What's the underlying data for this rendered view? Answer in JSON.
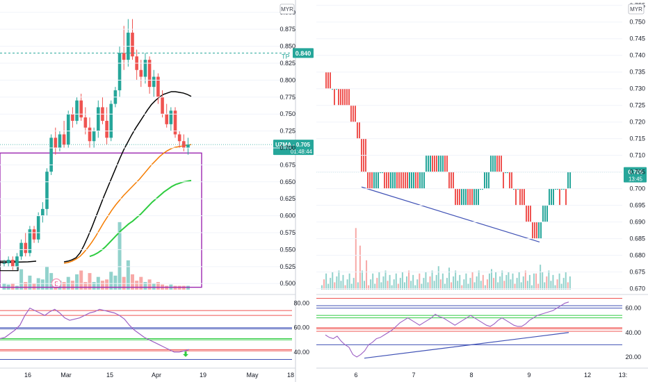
{
  "chart_data": [
    {
      "type": "candlestick",
      "panel": "left",
      "currency": "MYR",
      "symbol": "UZMA",
      "last_price": "0.705",
      "countdown": "01:48:44",
      "tp_label": "TP",
      "tp_price": "0.840",
      "event_badge": "E",
      "x_ticks": [
        "16",
        "Mar",
        "15",
        "Apr",
        "19",
        "May",
        "18"
      ],
      "y_ticks": [
        "0.500",
        "0.525",
        "0.550",
        "0.575",
        "0.600",
        "0.625",
        "0.650",
        "0.675",
        "0.700",
        "0.725",
        "0.750",
        "0.775",
        "0.800",
        "0.825",
        "0.850",
        "0.875",
        "0.900"
      ],
      "ylim": [
        0.49,
        0.91
      ],
      "candles": [
        [
          0.53,
          0.535,
          0.525,
          0.53
        ],
        [
          0.53,
          0.54,
          0.525,
          0.535
        ],
        [
          0.535,
          0.54,
          0.52,
          0.525
        ],
        [
          0.525,
          0.545,
          0.52,
          0.54
        ],
        [
          0.54,
          0.565,
          0.535,
          0.56
        ],
        [
          0.56,
          0.575,
          0.54,
          0.545
        ],
        [
          0.545,
          0.585,
          0.54,
          0.58
        ],
        [
          0.58,
          0.585,
          0.56,
          0.565
        ],
        [
          0.565,
          0.605,
          0.56,
          0.6
        ],
        [
          0.6,
          0.62,
          0.59,
          0.61
        ],
        [
          0.61,
          0.67,
          0.6,
          0.665
        ],
        [
          0.665,
          0.72,
          0.66,
          0.715
        ],
        [
          0.715,
          0.73,
          0.69,
          0.7
        ],
        [
          0.7,
          0.725,
          0.695,
          0.72
        ],
        [
          0.72,
          0.74,
          0.7,
          0.705
        ],
        [
          0.705,
          0.755,
          0.7,
          0.75
        ],
        [
          0.75,
          0.76,
          0.73,
          0.74
        ],
        [
          0.74,
          0.775,
          0.735,
          0.77
        ],
        [
          0.77,
          0.78,
          0.74,
          0.745
        ],
        [
          0.745,
          0.76,
          0.72,
          0.73
        ],
        [
          0.73,
          0.745,
          0.7,
          0.71
        ],
        [
          0.71,
          0.73,
          0.7,
          0.725
        ],
        [
          0.725,
          0.77,
          0.715,
          0.76
        ],
        [
          0.76,
          0.775,
          0.735,
          0.74
        ],
        [
          0.74,
          0.76,
          0.705,
          0.715
        ],
        [
          0.715,
          0.77,
          0.71,
          0.765
        ],
        [
          0.765,
          0.79,
          0.76,
          0.785
        ],
        [
          0.785,
          0.85,
          0.775,
          0.84
        ],
        [
          0.84,
          0.88,
          0.815,
          0.83
        ],
        [
          0.83,
          0.89,
          0.82,
          0.87
        ],
        [
          0.87,
          0.89,
          0.83,
          0.835
        ],
        [
          0.835,
          0.845,
          0.8,
          0.815
        ],
        [
          0.815,
          0.83,
          0.79,
          0.805
        ],
        [
          0.805,
          0.84,
          0.795,
          0.83
        ],
        [
          0.83,
          0.835,
          0.78,
          0.79
        ],
        [
          0.79,
          0.815,
          0.775,
          0.805
        ],
        [
          0.805,
          0.81,
          0.765,
          0.775
        ],
        [
          0.775,
          0.785,
          0.745,
          0.75
        ],
        [
          0.75,
          0.765,
          0.73,
          0.735
        ],
        [
          0.735,
          0.76,
          0.725,
          0.755
        ],
        [
          0.755,
          0.76,
          0.715,
          0.72
        ],
        [
          0.72,
          0.725,
          0.7,
          0.71
        ],
        [
          0.71,
          0.72,
          0.695,
          0.7
        ],
        [
          0.7,
          0.715,
          0.69,
          0.705
        ]
      ],
      "volume": [
        0.5,
        0.4,
        0.5,
        0.3,
        1.6,
        0.6,
        1.1,
        0.5,
        0.9,
        0.8,
        1.8,
        1.3,
        0.6,
        0.7,
        0.6,
        1.0,
        0.7,
        1.2,
        1.5,
        0.6,
        1.3,
        0.6,
        1.0,
        0.7,
        0.8,
        1.4,
        1.1,
        5.3,
        1.0,
        2.3,
        1.2,
        0.7,
        1.0,
        0.6,
        0.8,
        0.5,
        0.6,
        0.4,
        0.3,
        0.4,
        0.3,
        0.3,
        0.3,
        0.3
      ],
      "series": [
        {
          "color": "#000000",
          "values": [
            0.532,
            0.533,
            0.535,
            0.538,
            0.545,
            0.556,
            0.569,
            0.583,
            0.598,
            0.613,
            0.628,
            0.642,
            0.656,
            0.67,
            0.684,
            0.697,
            0.708,
            0.719,
            0.729,
            0.738,
            0.747,
            0.756,
            0.764,
            0.77,
            0.775,
            0.779,
            0.781,
            0.783,
            0.783,
            0.782,
            0.781,
            0.779,
            0.776
          ]
        },
        {
          "color": "#f57c00",
          "values": [
            0.53,
            0.531,
            0.533,
            0.536,
            0.54,
            0.546,
            0.553,
            0.561,
            0.57,
            0.58,
            0.59,
            0.599,
            0.608,
            0.616,
            0.623,
            0.63,
            0.636,
            0.642,
            0.648,
            0.654,
            0.661,
            0.668,
            0.675,
            0.681,
            0.687,
            0.692,
            0.696,
            0.699,
            0.701,
            0.702,
            0.703,
            0.704,
            0.705
          ]
        },
        {
          "color": "#2ecc40",
          "values": [
            0.54,
            0.542,
            0.545,
            0.549,
            0.554,
            0.56,
            0.566,
            0.572,
            0.578,
            0.583,
            0.588,
            0.592,
            0.597,
            0.602,
            0.608,
            0.614,
            0.62,
            0.625,
            0.63,
            0.635,
            0.639,
            0.643,
            0.646,
            0.648,
            0.65,
            0.651,
            0.652
          ]
        }
      ],
      "rsi": {
        "y_ticks": [
          "40.00",
          "60.00",
          "80.00"
        ],
        "ylim": [
          28,
          86
        ],
        "values": [
          51,
          52,
          55,
          58,
          62,
          70,
          76,
          74,
          72,
          70,
          73,
          75,
          72,
          68,
          66,
          67,
          68,
          70,
          72,
          73,
          75,
          74,
          73,
          72,
          70,
          67,
          62,
          58,
          55,
          52,
          50,
          48,
          46,
          44,
          42,
          40,
          40,
          41,
          42
        ]
      }
    },
    {
      "type": "candlestick",
      "panel": "right",
      "currency": "MYR",
      "last_price": "0.705",
      "countdown": "13:45",
      "x_ticks": [
        "6",
        "7",
        "8",
        "9",
        "12",
        "13:"
      ],
      "y_ticks": [
        "0.670",
        "0.675",
        "0.680",
        "0.685",
        "0.690",
        "0.695",
        "0.700",
        "0.705",
        "0.710",
        "0.715",
        "0.720",
        "0.725",
        "0.730",
        "0.735",
        "0.740",
        "0.745",
        "0.750",
        "0.755"
      ],
      "ylim": [
        0.6695,
        0.7562
      ],
      "candles_compact": "pattern of 0.705-0.710 bars, drop to 0.685, recovery to 0.705",
      "rsi": {
        "y_ticks": [
          "20.00",
          "40.00",
          "60.00"
        ],
        "ylim": [
          12,
          70
        ],
        "values": [
          38,
          36,
          35,
          37,
          33,
          30,
          28,
          22,
          20,
          22,
          25,
          30,
          32,
          35,
          36,
          38,
          40,
          42,
          45,
          48,
          50,
          52,
          50,
          48,
          46,
          48,
          50,
          52,
          55,
          53,
          52,
          50,
          48,
          46,
          48,
          50,
          52,
          54,
          52,
          50,
          48,
          46,
          45,
          47,
          50,
          52,
          50,
          48,
          46,
          45,
          45,
          47,
          50,
          52,
          54,
          55,
          56,
          57,
          58,
          60,
          62,
          64,
          65
        ]
      }
    }
  ]
}
